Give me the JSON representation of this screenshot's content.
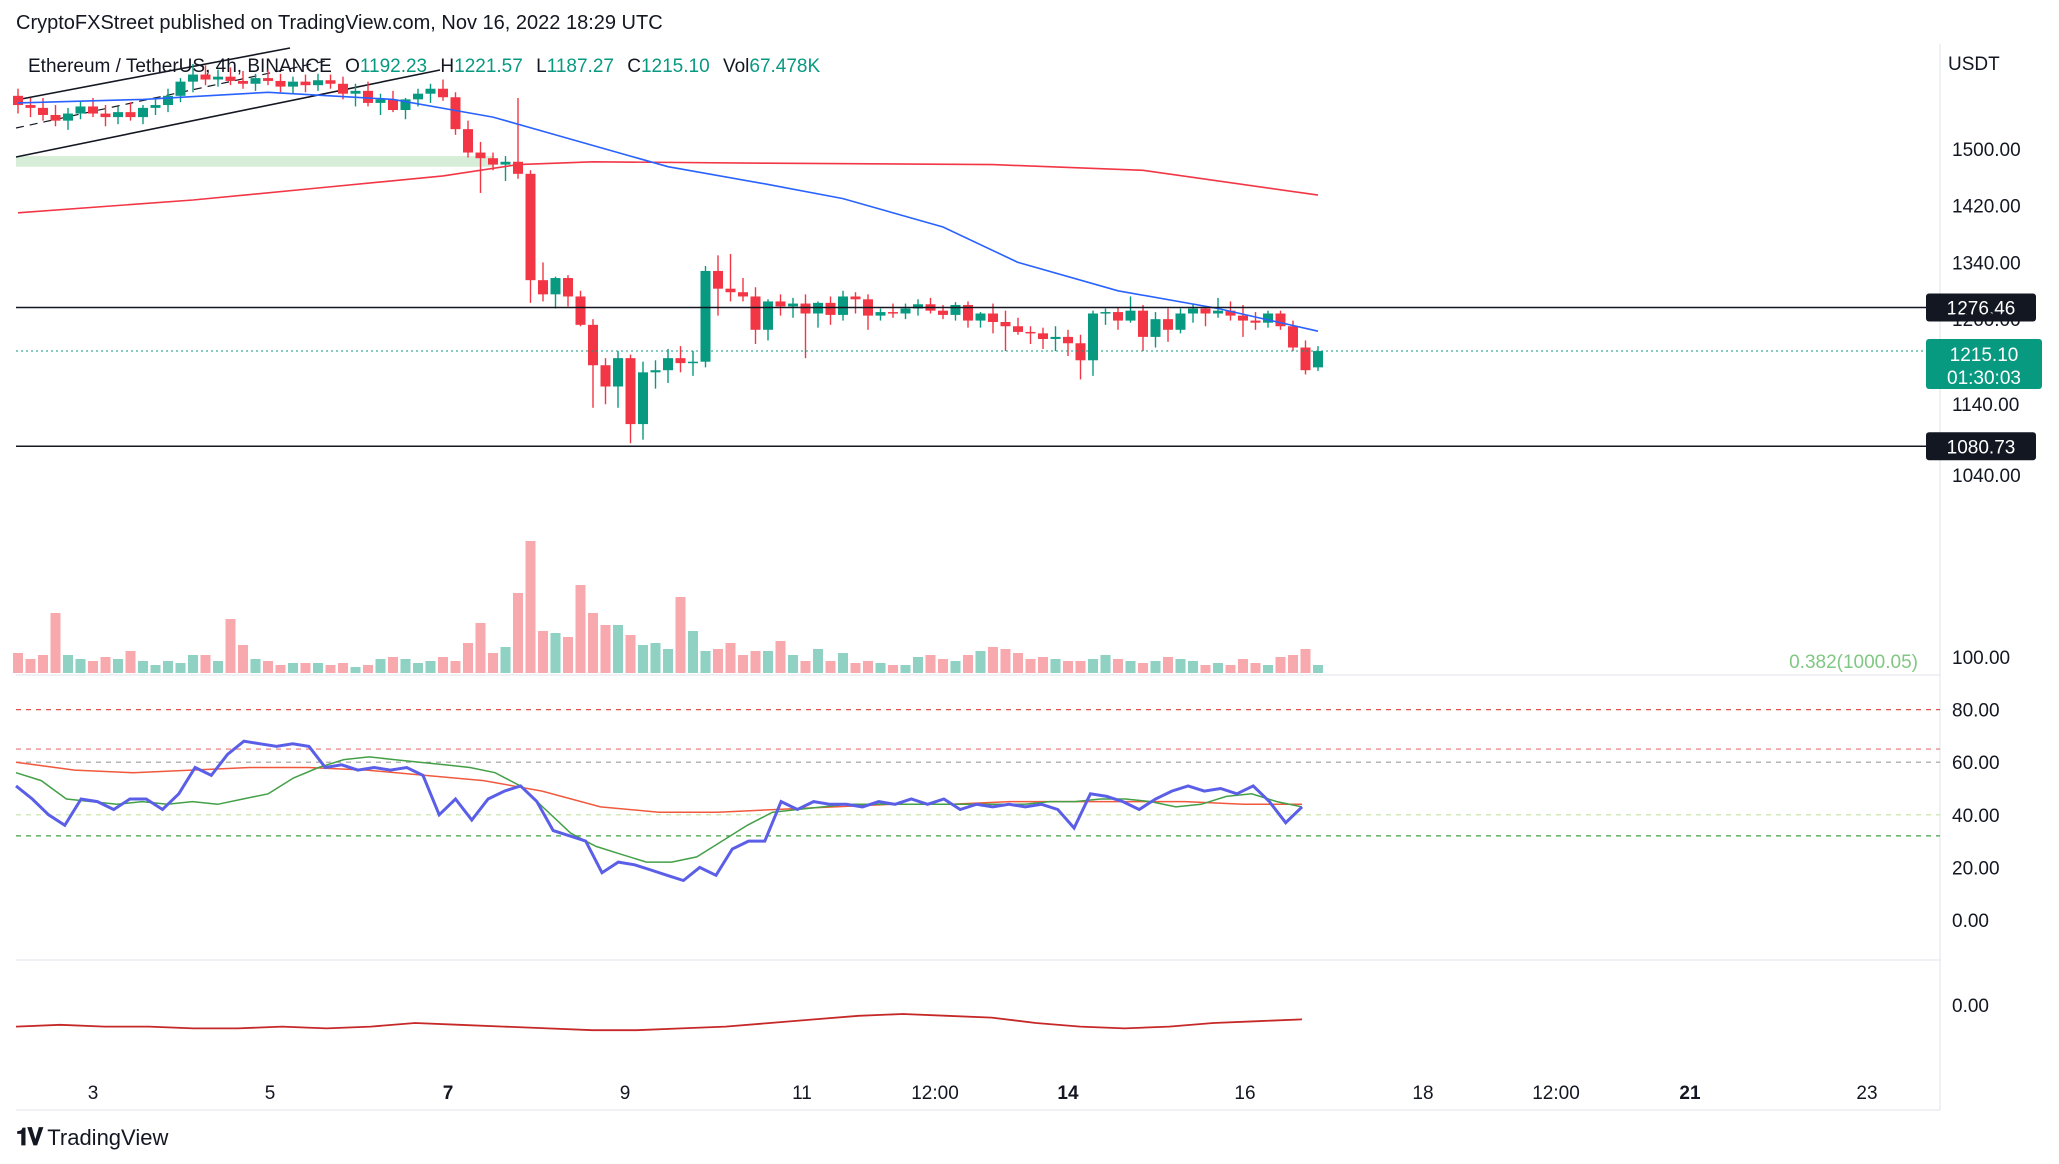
{
  "header": {
    "published": "CryptoFXStreet published on TradingView.com, Nov 16, 2022 18:29 UTC"
  },
  "legend": {
    "symbol": "Ethereum / TetherUS, 4h, BINANCE",
    "o_label": "O",
    "o_value": "1192.23",
    "h_label": "H",
    "h_value": "1221.57",
    "l_label": "L",
    "l_value": "1187.27",
    "c_label": "C",
    "c_value": "1215.10",
    "vol_label": "Vol",
    "vol_value": "67.478K"
  },
  "currency": "USDT",
  "price_ticks": [
    "1500.00",
    "1420.00",
    "1340.00",
    "1260.00",
    "1140.00",
    "1040.00"
  ],
  "horizontal_levels": [
    {
      "label": "1276.46",
      "value": 1276.46
    },
    {
      "label": "1080.73",
      "value": 1080.73
    }
  ],
  "last_price": {
    "label": "1215.10",
    "countdown": "01:30:03",
    "color": "#089981"
  },
  "fib_label": "0.382(1000.05)",
  "rsi_ticks": [
    "100.00",
    "80.00",
    "60.00",
    "40.00",
    "20.00",
    "0.00"
  ],
  "osc_ticks": [
    "0.00"
  ],
  "time_ticks": [
    {
      "label": "3",
      "bold": false
    },
    {
      "label": "5",
      "bold": false
    },
    {
      "label": "7",
      "bold": true
    },
    {
      "label": "9",
      "bold": false
    },
    {
      "label": "11",
      "bold": false
    },
    {
      "label": "12:00",
      "bold": false
    },
    {
      "label": "14",
      "bold": true
    },
    {
      "label": "16",
      "bold": false
    },
    {
      "label": "18",
      "bold": false
    },
    {
      "label": "12:00",
      "bold": false
    },
    {
      "label": "21",
      "bold": true
    },
    {
      "label": "23",
      "bold": false
    }
  ],
  "colors": {
    "up": "#089981",
    "down": "#f23645",
    "ma_fast": "#2962ff",
    "ma_slow": "#f23645",
    "rsi": "#5b5fe8",
    "rsi_signal": "#43a047",
    "rsi_slow": "#f0593e"
  },
  "brand": "TradingView",
  "chart_data": {
    "type": "candlestick",
    "title": "Ethereum / TetherUS, 4h, BINANCE",
    "ylabel": "USDT",
    "ylim": [
      1005,
      1590
    ],
    "candles": [
      [
        1575,
        1585,
        1550,
        1562
      ],
      [
        1562,
        1572,
        1545,
        1558
      ],
      [
        1558,
        1572,
        1540,
        1548
      ],
      [
        1548,
        1562,
        1532,
        1540
      ],
      [
        1540,
        1558,
        1527,
        1550
      ],
      [
        1550,
        1568,
        1542,
        1560
      ],
      [
        1560,
        1572,
        1545,
        1550
      ],
      [
        1550,
        1562,
        1532,
        1545
      ],
      [
        1545,
        1560,
        1535,
        1552
      ],
      [
        1552,
        1566,
        1540,
        1545
      ],
      [
        1545,
        1562,
        1535,
        1558
      ],
      [
        1558,
        1570,
        1548,
        1562
      ],
      [
        1562,
        1585,
        1552,
        1575
      ],
      [
        1575,
        1600,
        1566,
        1595
      ],
      [
        1595,
        1620,
        1580,
        1605
      ],
      [
        1605,
        1618,
        1590,
        1598
      ],
      [
        1598,
        1612,
        1588,
        1602
      ],
      [
        1602,
        1615,
        1590,
        1596
      ],
      [
        1596,
        1610,
        1585,
        1592
      ],
      [
        1592,
        1606,
        1582,
        1600
      ],
      [
        1600,
        1612,
        1590,
        1596
      ],
      [
        1596,
        1606,
        1580,
        1588
      ],
      [
        1588,
        1602,
        1578,
        1595
      ],
      [
        1595,
        1605,
        1580,
        1590
      ],
      [
        1590,
        1606,
        1582,
        1597
      ],
      [
        1597,
        1605,
        1585,
        1592
      ],
      [
        1592,
        1602,
        1570,
        1578
      ],
      [
        1578,
        1592,
        1560,
        1582
      ],
      [
        1582,
        1595,
        1560,
        1565
      ],
      [
        1565,
        1578,
        1548,
        1570
      ],
      [
        1570,
        1582,
        1552,
        1555
      ],
      [
        1555,
        1572,
        1542,
        1570
      ],
      [
        1570,
        1585,
        1560,
        1578
      ],
      [
        1578,
        1592,
        1565,
        1585
      ],
      [
        1585,
        1598,
        1568,
        1573
      ],
      [
        1573,
        1580,
        1520,
        1528
      ],
      [
        1528,
        1540,
        1488,
        1495
      ],
      [
        1495,
        1510,
        1438,
        1487
      ],
      [
        1487,
        1495,
        1470,
        1478
      ],
      [
        1478,
        1490,
        1455,
        1482
      ],
      [
        1482,
        1572,
        1458,
        1465
      ],
      [
        1465,
        1470,
        1283,
        1315
      ],
      [
        1315,
        1340,
        1285,
        1295
      ],
      [
        1295,
        1320,
        1275,
        1318
      ],
      [
        1318,
        1322,
        1278,
        1292
      ],
      [
        1292,
        1300,
        1250,
        1252
      ],
      [
        1252,
        1260,
        1135,
        1195
      ],
      [
        1195,
        1205,
        1140,
        1165
      ],
      [
        1165,
        1215,
        1135,
        1205
      ],
      [
        1205,
        1210,
        1085,
        1112
      ],
      [
        1112,
        1200,
        1090,
        1185
      ],
      [
        1185,
        1202,
        1162,
        1188
      ],
      [
        1188,
        1218,
        1170,
        1205
      ],
      [
        1205,
        1222,
        1185,
        1198
      ],
      [
        1198,
        1215,
        1180,
        1200
      ],
      [
        1200,
        1335,
        1192,
        1328
      ],
      [
        1328,
        1350,
        1265,
        1303
      ],
      [
        1303,
        1352,
        1285,
        1298
      ],
      [
        1298,
        1318,
        1285,
        1292
      ],
      [
        1292,
        1305,
        1225,
        1245
      ],
      [
        1245,
        1288,
        1230,
        1285
      ],
      [
        1285,
        1295,
        1265,
        1278
      ],
      [
        1278,
        1290,
        1262,
        1282
      ],
      [
        1282,
        1295,
        1205,
        1268
      ],
      [
        1268,
        1285,
        1248,
        1283
      ],
      [
        1283,
        1292,
        1252,
        1266
      ],
      [
        1266,
        1300,
        1258,
        1292
      ],
      [
        1292,
        1298,
        1268,
        1288
      ],
      [
        1288,
        1295,
        1245,
        1265
      ],
      [
        1265,
        1275,
        1258,
        1270
      ],
      [
        1270,
        1282,
        1262,
        1268
      ],
      [
        1268,
        1282,
        1260,
        1275
      ],
      [
        1275,
        1288,
        1265,
        1281
      ],
      [
        1281,
        1290,
        1268,
        1272
      ],
      [
        1272,
        1280,
        1260,
        1266
      ],
      [
        1266,
        1284,
        1258,
        1280
      ],
      [
        1280,
        1285,
        1248,
        1258
      ],
      [
        1258,
        1270,
        1248,
        1268
      ],
      [
        1268,
        1282,
        1240,
        1256
      ],
      [
        1256,
        1272,
        1215,
        1250
      ],
      [
        1250,
        1262,
        1238,
        1242
      ],
      [
        1242,
        1250,
        1225,
        1240
      ],
      [
        1240,
        1248,
        1218,
        1232
      ],
      [
        1232,
        1250,
        1215,
        1235
      ],
      [
        1235,
        1245,
        1208,
        1226
      ],
      [
        1226,
        1238,
        1175,
        1202
      ],
      [
        1202,
        1272,
        1180,
        1268
      ],
      [
        1268,
        1275,
        1252,
        1270
      ],
      [
        1270,
        1276,
        1245,
        1258
      ],
      [
        1258,
        1292,
        1255,
        1272
      ],
      [
        1272,
        1280,
        1215,
        1235
      ],
      [
        1235,
        1270,
        1220,
        1260
      ],
      [
        1260,
        1275,
        1228,
        1245
      ],
      [
        1245,
        1275,
        1240,
        1268
      ],
      [
        1268,
        1282,
        1255,
        1275
      ],
      [
        1275,
        1278,
        1250,
        1268
      ],
      [
        1268,
        1290,
        1262,
        1272
      ],
      [
        1272,
        1285,
        1258,
        1265
      ],
      [
        1265,
        1280,
        1235,
        1258
      ],
      [
        1258,
        1270,
        1245,
        1255
      ],
      [
        1255,
        1272,
        1248,
        1268
      ],
      [
        1268,
        1272,
        1245,
        1250
      ],
      [
        1250,
        1258,
        1215,
        1220
      ],
      [
        1220,
        1230,
        1182,
        1188
      ],
      [
        1192,
        1222,
        1187,
        1215
      ]
    ],
    "volume": [
      20,
      14,
      18,
      60,
      18,
      14,
      12,
      16,
      14,
      22,
      12,
      8,
      12,
      10,
      18,
      18,
      12,
      54,
      28,
      14,
      12,
      8,
      10,
      10,
      10,
      8,
      10,
      6,
      8,
      14,
      16,
      14,
      10,
      12,
      16,
      12,
      30,
      50,
      20,
      26,
      80,
      132,
      42,
      40,
      36,
      88,
      60,
      48,
      48,
      38,
      28,
      30,
      24,
      76,
      42,
      22,
      24,
      30,
      18,
      22,
      22,
      32,
      18,
      12,
      24,
      12,
      20,
      10,
      12,
      10,
      8,
      8,
      16,
      18,
      14,
      12,
      18,
      22,
      26,
      24,
      20,
      14,
      16,
      14,
      12,
      12,
      14,
      18,
      14,
      12,
      10,
      12,
      16,
      14,
      12,
      8,
      10,
      8,
      14,
      10,
      8,
      16,
      18,
      24,
      8
    ],
    "ma_fast": [
      [
        0,
        1565
      ],
      [
        10,
        1570
      ],
      [
        20,
        1580
      ],
      [
        30,
        1570
      ],
      [
        38,
        1545
      ],
      [
        46,
        1505
      ],
      [
        52,
        1475
      ],
      [
        60,
        1450
      ],
      [
        66,
        1430
      ],
      [
        74,
        1390
      ],
      [
        80,
        1340
      ],
      [
        88,
        1300
      ],
      [
        96,
        1275
      ],
      [
        104,
        1243
      ]
    ],
    "ma_slow": [
      [
        0,
        1410
      ],
      [
        14,
        1428
      ],
      [
        24,
        1445
      ],
      [
        34,
        1462
      ],
      [
        40,
        1478
      ],
      [
        46,
        1482
      ],
      [
        60,
        1480
      ],
      [
        78,
        1478
      ],
      [
        90,
        1470
      ],
      [
        104,
        1435
      ]
    ],
    "support_zone": [
      1475,
      1490
    ],
    "rsi": {
      "ylim": [
        0,
        100
      ],
      "levels": [
        80,
        65,
        60,
        40,
        32
      ],
      "rsi": [
        51,
        46,
        40,
        36,
        46,
        45,
        42,
        46,
        46,
        42,
        48,
        58,
        55,
        63,
        68,
        67,
        66,
        67,
        66,
        58,
        59,
        57,
        58,
        57,
        58,
        55,
        40,
        46,
        38,
        46,
        49,
        51,
        45,
        34,
        32,
        30,
        18,
        22,
        21,
        19,
        17,
        15,
        20,
        17,
        27,
        30,
        30,
        45,
        42,
        45,
        44,
        44,
        43,
        45,
        44,
        46,
        44,
        46,
        42,
        44,
        43,
        44,
        43,
        44,
        42,
        35,
        48,
        47,
        45,
        42,
        46,
        49,
        51,
        49,
        50,
        48,
        51,
        45,
        37,
        43
      ],
      "signal": [
        56,
        53,
        46,
        45,
        44,
        45,
        44,
        45,
        44,
        46,
        48,
        54,
        58,
        61,
        62,
        61,
        60,
        59,
        58,
        56,
        51,
        42,
        33,
        28,
        25,
        22,
        22,
        24,
        30,
        36,
        41,
        42,
        43,
        44,
        44,
        44,
        44,
        44,
        44,
        44,
        44,
        45,
        45,
        46,
        46,
        45,
        43,
        44,
        47,
        48,
        45,
        43
      ],
      "slow": [
        60,
        57,
        56,
        57,
        58,
        58,
        57,
        55,
        53,
        49,
        43,
        41,
        41,
        42,
        43,
        44,
        44,
        45,
        45,
        45,
        45,
        44,
        44
      ]
    },
    "oscillator": [
      -12,
      -11,
      -12,
      -12,
      -13,
      -13,
      -12,
      -13,
      -12,
      -10,
      -11,
      -12,
      -13,
      -14,
      -14,
      -13,
      -12,
      -10,
      -8,
      -6,
      -5,
      -6,
      -7,
      -10,
      -12,
      -13,
      -12,
      -10,
      -9,
      -8
    ]
  }
}
